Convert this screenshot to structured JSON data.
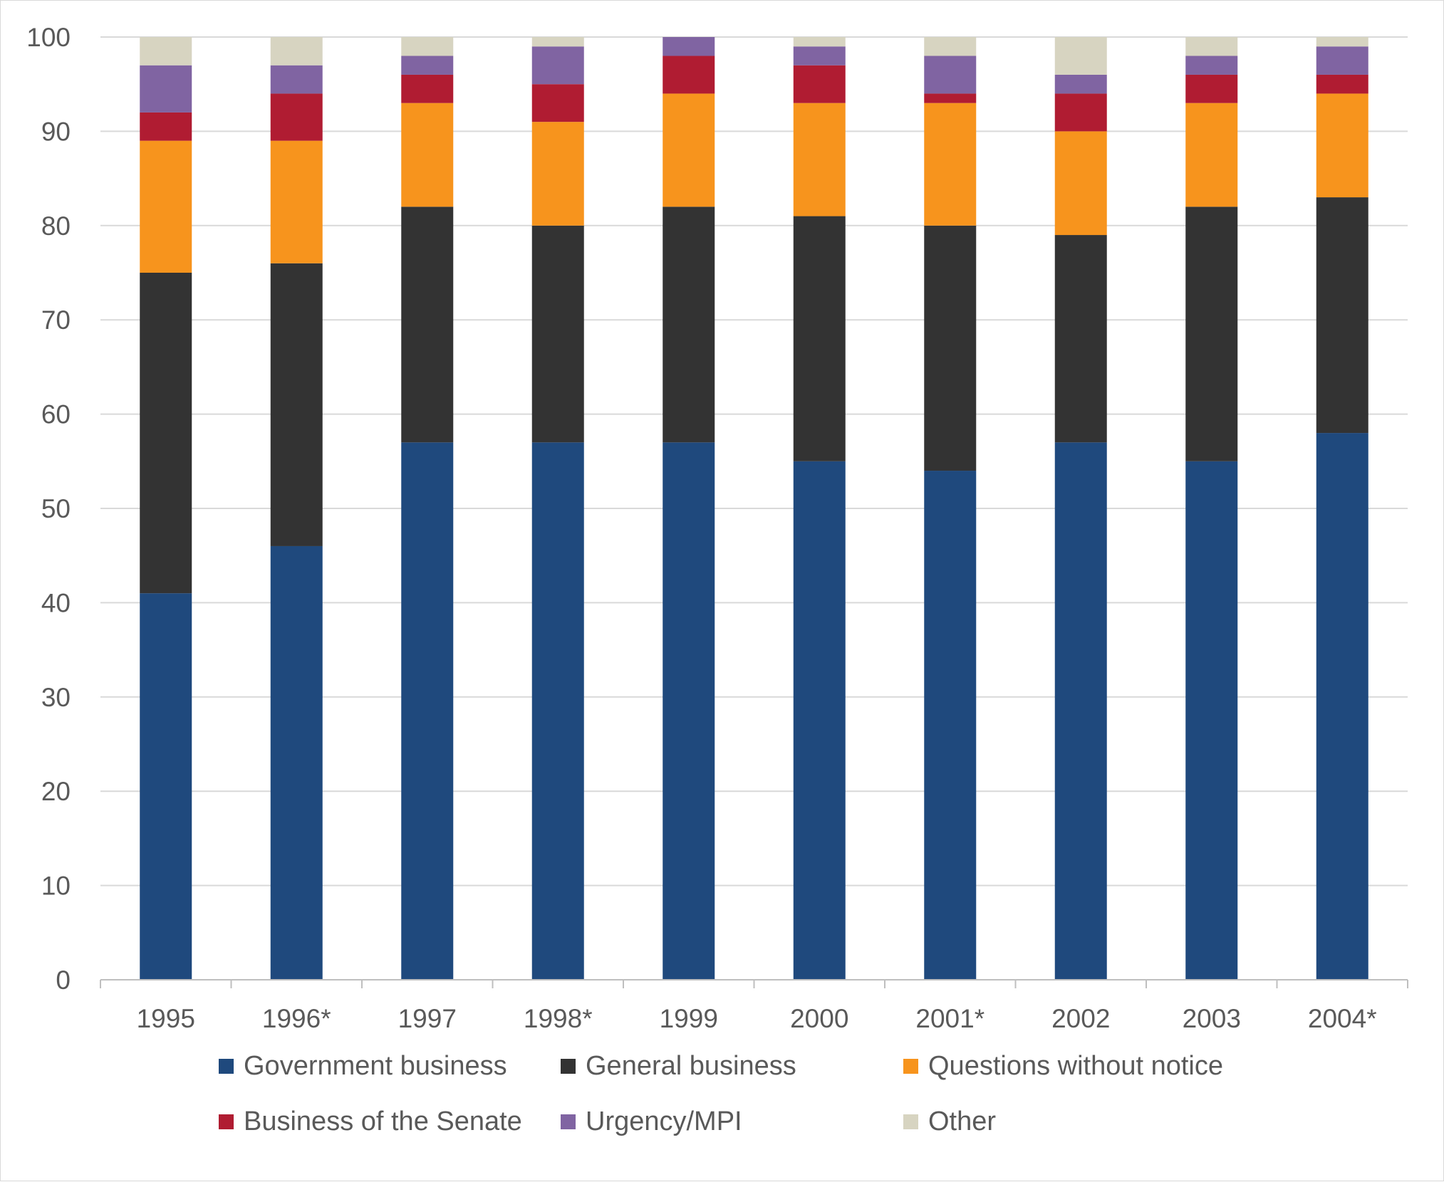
{
  "chart_data": {
    "type": "bar",
    "stacked": true,
    "title": "",
    "xlabel": "",
    "ylabel": "",
    "ylim": [
      0,
      100
    ],
    "yticks": [
      0,
      10,
      20,
      30,
      40,
      50,
      60,
      70,
      80,
      90,
      100
    ],
    "grid": true,
    "legend_position": "bottom",
    "categories": [
      "1995",
      "1996*",
      "1997",
      "1998*",
      "1999",
      "2000",
      "2001*",
      "2002",
      "2003",
      "2004*"
    ],
    "series": [
      {
        "name": "Government business",
        "color": "#1f497d",
        "values": [
          41,
          46,
          57,
          57,
          57,
          55,
          54,
          57,
          55,
          58
        ]
      },
      {
        "name": "General business",
        "color": "#333333",
        "values": [
          34,
          30,
          25,
          23,
          25,
          26,
          26,
          22,
          27,
          25
        ]
      },
      {
        "name": "Questions without notice",
        "color": "#f7941d",
        "values": [
          14,
          13,
          11,
          11,
          12,
          12,
          13,
          11,
          11,
          11
        ]
      },
      {
        "name": "Business of the Senate",
        "color": "#b01c32",
        "values": [
          3,
          5,
          3,
          4,
          4,
          4,
          1,
          4,
          3,
          2
        ]
      },
      {
        "name": "Urgency/MPI",
        "color": "#8064a2",
        "values": [
          5,
          3,
          2,
          4,
          2,
          2,
          4,
          2,
          2,
          3
        ]
      },
      {
        "name": "Other",
        "color": "#d7d4c1",
        "values": [
          3,
          3,
          2,
          1,
          0,
          1,
          2,
          4,
          2,
          1
        ]
      }
    ]
  }
}
